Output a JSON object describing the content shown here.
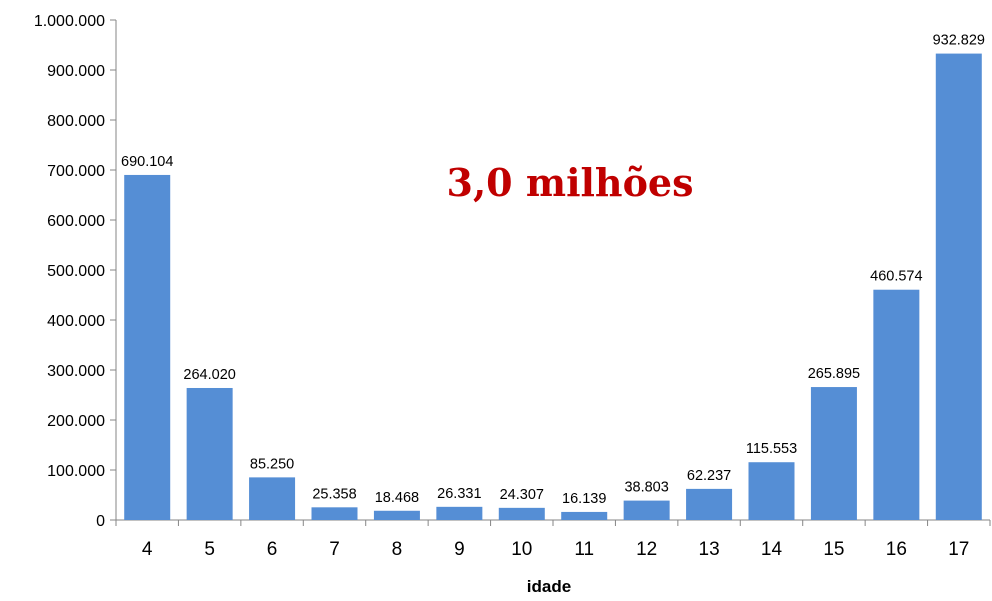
{
  "chart_data": {
    "type": "bar",
    "categories": [
      "4",
      "5",
      "6",
      "7",
      "8",
      "9",
      "10",
      "11",
      "12",
      "13",
      "14",
      "15",
      "16",
      "17"
    ],
    "values": [
      690104,
      264020,
      85250,
      25358,
      18468,
      26331,
      24307,
      16139,
      38803,
      62237,
      115553,
      265895,
      460574,
      932829
    ],
    "data_labels": [
      "690.104",
      "264.020",
      "85.250",
      "25.358",
      "18.468",
      "26.331",
      "24.307",
      "16.139",
      "38.803",
      "62.237",
      "115.553",
      "265.895",
      "460.574",
      "932.829"
    ],
    "title": "",
    "xlabel": "idade",
    "ylabel": "",
    "ylim": [
      0,
      1000000
    ],
    "yticks": [
      0,
      100000,
      200000,
      300000,
      400000,
      500000,
      600000,
      700000,
      800000,
      900000,
      1000000
    ],
    "ytick_labels": [
      "0",
      "100.000",
      "200.000",
      "300.000",
      "400.000",
      "500.000",
      "600.000",
      "700.000",
      "800.000",
      "900.000",
      "1.000.000"
    ],
    "annotation": "3,0 milhões",
    "grid": false,
    "legend": "none",
    "bar_color": "#558ED5",
    "annotation_color": "#C00000"
  }
}
